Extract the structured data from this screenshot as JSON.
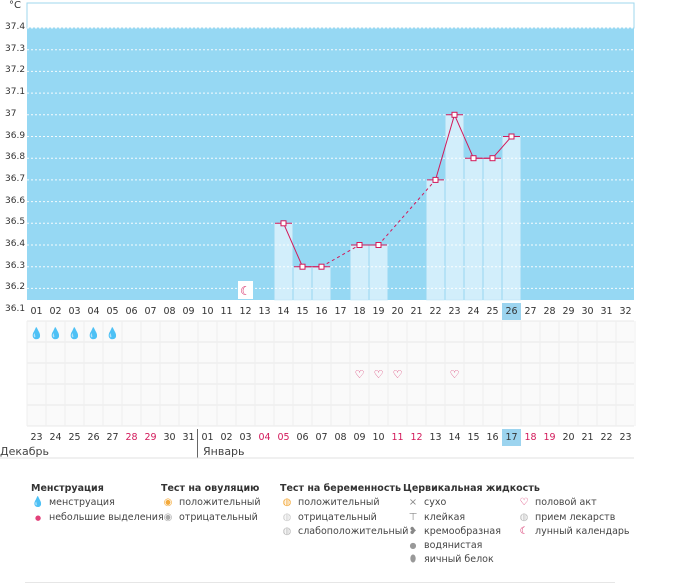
{
  "unit_label": "°C",
  "chart_data": {
    "type": "line",
    "title": "",
    "ylabel": "°C",
    "ylim": [
      36.1,
      37.4
    ],
    "y_ticks": [
      "37.4",
      "37.3",
      "37.2",
      "37.1",
      "37",
      "36.9",
      "36.8",
      "36.7",
      "36.6",
      "36.5",
      "36.4",
      "36.3",
      "36.2",
      "36.1"
    ],
    "cycle_days": [
      "01",
      "02",
      "03",
      "04",
      "05",
      "06",
      "07",
      "08",
      "09",
      "10",
      "11",
      "12",
      "13",
      "14",
      "15",
      "16",
      "17",
      "18",
      "19",
      "20",
      "21",
      "22",
      "23",
      "24",
      "25",
      "26",
      "27",
      "28",
      "29",
      "30",
      "31",
      "32"
    ],
    "current_cycle_day": "26",
    "temperatures": [
      {
        "day": 14,
        "value": 36.5
      },
      {
        "day": 15,
        "value": 36.3
      },
      {
        "day": 16,
        "value": 36.3
      },
      {
        "day": 18,
        "value": 36.4
      },
      {
        "day": 19,
        "value": 36.4
      },
      {
        "day": 22,
        "value": 36.7
      },
      {
        "day": 23,
        "value": 37.0
      },
      {
        "day": 24,
        "value": 36.8
      },
      {
        "day": 25,
        "value": 36.8
      },
      {
        "day": 26,
        "value": 36.9
      }
    ],
    "lunar_day": 12,
    "menstruation_days": [
      1,
      2,
      3,
      4,
      5
    ],
    "intercourse_days": [
      18,
      19,
      20,
      23
    ],
    "grid": true
  },
  "colors": {
    "plot_bg": "#96d8f3",
    "column_fill": "#d2eefb",
    "line": "#d2195a",
    "weekend": "#d2195a",
    "today_highlight": "#9cd4ef"
  },
  "dates": {
    "days": [
      "23",
      "24",
      "25",
      "26",
      "27",
      "28",
      "29",
      "30",
      "31",
      "01",
      "02",
      "03",
      "04",
      "05",
      "06",
      "07",
      "08",
      "09",
      "10",
      "11",
      "12",
      "13",
      "14",
      "15",
      "16",
      "17",
      "18",
      "19",
      "20",
      "21",
      "22",
      "23"
    ],
    "weekend_indexes": [
      5,
      6,
      12,
      13,
      19,
      20,
      26,
      27
    ],
    "today_index": 25,
    "month_december": "Декабрь",
    "month_january": "Январь"
  },
  "legend": {
    "menstruation": {
      "title": "Менструация",
      "items": [
        "менструация",
        "небольшие выделения"
      ]
    },
    "ovulation_test": {
      "title": "Тест на овуляцию",
      "items": [
        "положительный",
        "отрицательный"
      ]
    },
    "pregnancy_test": {
      "title": "Тест на беременность",
      "items": [
        "положительный",
        "отрицательный",
        "слабоположительный"
      ]
    },
    "cervical_fluid": {
      "title": "Цервикальная жидкость",
      "items": [
        "сухо",
        "клейкая",
        "кремообразная",
        "водянистая",
        "яичный белок"
      ]
    },
    "other": {
      "items": [
        "половой акт",
        "прием лекарств",
        "лунный календарь"
      ]
    }
  }
}
